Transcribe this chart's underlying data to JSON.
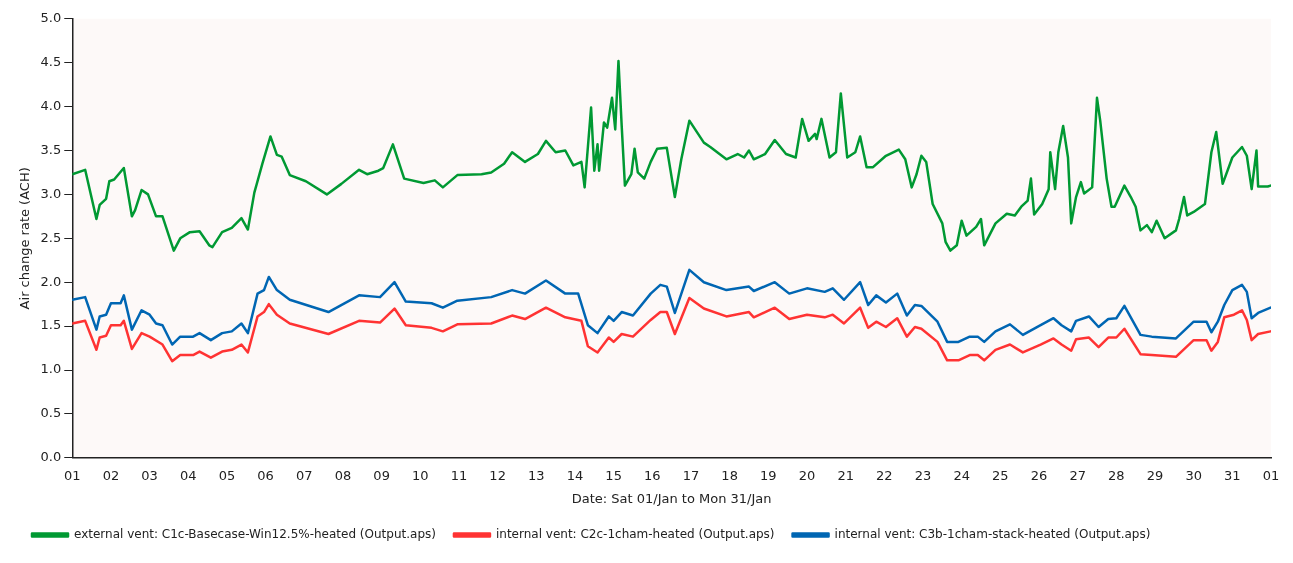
{
  "chart_data": {
    "type": "line",
    "xlabel": "Date: Sat 01/Jan to Mon 31/Jan",
    "ylabel": "Air change rate (ACH)",
    "xlim": [
      "--01-01",
      "--02-01"
    ],
    "ylim": [
      0,
      5
    ],
    "xticks": [
      {
        "value": "--01-01",
        "label": "01"
      },
      {
        "value": "--01-02",
        "label": "02"
      },
      {
        "value": "--01-03",
        "label": "03"
      },
      {
        "value": "--01-04",
        "label": "04"
      },
      {
        "value": "--01-05",
        "label": "05"
      },
      {
        "value": "--01-06",
        "label": "06"
      },
      {
        "value": "--01-07",
        "label": "07"
      },
      {
        "value": "--01-08",
        "label": "08"
      },
      {
        "value": "--01-09",
        "label": "09"
      },
      {
        "value": "--01-10",
        "label": "10"
      },
      {
        "value": "--01-11",
        "label": "11"
      },
      {
        "value": "--01-12",
        "label": "12"
      },
      {
        "value": "--01-13",
        "label": "13"
      },
      {
        "value": "--01-14",
        "label": "14"
      },
      {
        "value": "--01-15",
        "label": "15"
      },
      {
        "value": "--01-16",
        "label": "16"
      },
      {
        "value": "--01-17",
        "label": "17"
      },
      {
        "value": "--01-18",
        "label": "18"
      },
      {
        "value": "--01-19",
        "label": "19"
      },
      {
        "value": "--01-20",
        "label": "20"
      },
      {
        "value": "--01-21",
        "label": "21"
      },
      {
        "value": "--01-22",
        "label": "22"
      },
      {
        "value": "--01-23",
        "label": "23"
      },
      {
        "value": "--01-24",
        "label": "24"
      },
      {
        "value": "--01-25",
        "label": "25"
      },
      {
        "value": "--01-26",
        "label": "26"
      },
      {
        "value": "--01-27",
        "label": "27"
      },
      {
        "value": "--01-28",
        "label": "28"
      },
      {
        "value": "--01-29",
        "label": "29"
      },
      {
        "value": "--01-30",
        "label": "30"
      },
      {
        "value": "--01-31",
        "label": "31"
      },
      {
        "value": "--02-01",
        "label": "01"
      }
    ],
    "yticks": [
      {
        "value": 0,
        "label": "0.0"
      },
      0.5,
      {
        "value": 1,
        "label": "1.0"
      },
      1.5,
      {
        "value": 2,
        "label": "2.0"
      },
      2.5,
      {
        "value": 3,
        "label": "3.0"
      },
      3.5,
      {
        "value": 4,
        "label": "4.0"
      },
      4.5,
      {
        "value": 5,
        "label": "5.0"
      }
    ],
    "grid": false,
    "legend": "bottom",
    "marker": "none",
    "line_style": "solid",
    "series": [
      {
        "name": "external vent: C1c-Basecase-Win12.5%-heated (Output.aps)",
        "color": "#009933",
        "x": [
          "--01-01T00:00",
          "--01-01T08:00",
          "--01-01T15:00",
          "--01-01T17:00",
          "--01-01T21:00",
          "--01-01T23:00",
          "--01-02T02:00",
          "--01-02T08:00",
          "--01-02T13:00",
          "--01-02T15:00",
          "--01-02T19:00",
          "--01-02T23:00",
          "--01-03T04:00",
          "--01-03T08:00",
          "--01-03T15:00",
          "--01-03T19:00",
          "--01-04T01:00",
          "--01-04T07:00",
          "--01-04T13:00",
          "--01-04T15:00",
          "--01-04T21:00",
          "--01-05T03:00",
          "--01-05T09:00",
          "--01-05T13:00",
          "--01-05T17:00",
          "--01-05T22:00",
          "--01-06T03:00",
          "--01-06T07:00",
          "--01-06T10:00",
          "--01-06T15:00",
          "--01-07T01:00",
          "--01-07T14:00",
          "--01-07T23:00",
          "--01-08T10:00",
          "--01-08T15:00",
          "--01-08T22:00",
          "--01-09T01:00",
          "--01-09T07:00",
          "--01-09T14:00",
          "--01-10T02:00",
          "--01-10T09:00",
          "--01-10T14:00",
          "--01-10T23:00",
          "--01-11T14:00",
          "--01-11T20:00",
          "--01-12T04:00",
          "--01-12T09:00",
          "--01-12T17:00",
          "--01-13T01:00",
          "--01-13T06:00",
          "--01-13T12:00",
          "--01-13T18:00",
          "--01-13T23:00",
          "--01-14T04:00",
          "--01-14T06:00",
          "--01-14T10:00",
          "--01-14T12:00",
          "--01-14T14:00",
          "--01-14T15:00",
          "--01-14T18:00",
          "--01-14T20:00",
          "--01-14T23:00",
          "--01-15T01:00",
          "--01-15T03:00",
          "--01-15T05:00",
          "--01-15T07:00",
          "--01-15T11:00",
          "--01-15T13:00",
          "--01-15T15:00",
          "--01-15T19:00",
          "--01-15T23:00",
          "--01-16T03:00",
          "--01-16T09:00",
          "--01-16T14:00",
          "--01-16T18:00",
          "--01-16T23:00",
          "--01-17T08:00",
          "--01-17T12:00",
          "--01-17T22:00",
          "--01-18T05:00",
          "--01-18T09:00",
          "--01-18T12:00",
          "--01-18T15:00",
          "--01-18T22:00",
          "--01-19T04:00",
          "--01-19T11:00",
          "--01-19T17:00",
          "--01-19T21:00",
          "--01-20T01:00",
          "--01-20T05:00",
          "--01-20T06:00",
          "--01-20T09:00",
          "--01-20T14:00",
          "--01-20T18:00",
          "--01-20T21:00",
          "--01-21T01:00",
          "--01-21T06:00",
          "--01-21T09:00",
          "--01-21T13:00",
          "--01-21T17:00",
          "--01-22T01:00",
          "--01-22T09:00",
          "--01-22T13:00",
          "--01-22T17:00",
          "--01-22T20:00",
          "--01-22T23:00",
          "--01-23T02:00",
          "--01-23T06:00",
          "--01-23T12:00",
          "--01-23T14:00",
          "--01-23T17:00",
          "--01-23T21:00",
          "--01-24T00:00",
          "--01-24T03:00",
          "--01-24T09:00",
          "--01-24T12:00",
          "--01-24T14:00",
          "--01-24T21:00",
          "--01-25T04:00",
          "--01-25T09:00",
          "--01-25T13:00",
          "--01-25T17:00",
          "--01-25T19:00",
          "--01-25T21:00",
          "--01-26T02:00",
          "--01-26T06:00",
          "--01-26T07:00",
          "--01-26T10:00",
          "--01-26T12:00",
          "--01-26T15:00",
          "--01-26T18:00",
          "--01-26T20:00",
          "--01-26T23:00",
          "--01-27T02:00",
          "--01-27T04:00",
          "--01-27T09:00",
          "--01-27T12:00",
          "--01-27T14:00",
          "--01-27T18:00",
          "--01-27T21:00",
          "--01-27T23:00",
          "--01-28T05:00",
          "--01-28T09:00",
          "--01-28T12:00",
          "--01-28T15:00",
          "--01-28T19:00",
          "--01-28T22:00",
          "--01-29T01:00",
          "--01-29T06:00",
          "--01-29T13:00",
          "--01-29T15:00",
          "--01-29T18:00",
          "--01-29T20:00",
          "--01-30T00:00",
          "--01-30T07:00",
          "--01-30T11:00",
          "--01-30T14:00",
          "--01-30T18:00",
          "--01-31T00:00",
          "--01-31T06:00",
          "--01-31T09:00",
          "--01-31T12:00",
          "--01-31T15:00",
          "--01-31T16:00",
          "--01-31T22:00",
          "--01-31T23:45"
        ],
        "values": [
          3.23,
          3.28,
          2.72,
          2.88,
          2.95,
          3.15,
          3.17,
          3.3,
          2.75,
          2.82,
          3.05,
          3.0,
          2.75,
          2.75,
          2.36,
          2.5,
          2.57,
          2.58,
          2.42,
          2.4,
          2.57,
          2.62,
          2.73,
          2.6,
          3.02,
          3.35,
          3.66,
          3.45,
          3.43,
          3.22,
          3.15,
          3.0,
          3.12,
          3.28,
          3.23,
          3.27,
          3.3,
          3.57,
          3.18,
          3.13,
          3.16,
          3.08,
          3.22,
          3.23,
          3.25,
          3.35,
          3.48,
          3.37,
          3.46,
          3.61,
          3.48,
          3.5,
          3.33,
          3.37,
          3.08,
          3.99,
          3.27,
          3.57,
          3.27,
          3.82,
          3.76,
          4.1,
          3.74,
          4.52,
          3.78,
          3.1,
          3.23,
          3.52,
          3.25,
          3.18,
          3.37,
          3.52,
          3.53,
          2.97,
          3.4,
          3.84,
          3.59,
          3.54,
          3.4,
          3.46,
          3.42,
          3.5,
          3.4,
          3.46,
          3.62,
          3.46,
          3.42,
          3.86,
          3.61,
          3.69,
          3.63,
          3.86,
          3.42,
          3.48,
          4.15,
          3.42,
          3.48,
          3.66,
          3.31,
          3.31,
          3.44,
          3.51,
          3.4,
          3.08,
          3.23,
          3.44,
          3.37,
          2.89,
          2.67,
          2.46,
          2.36,
          2.42,
          2.7,
          2.53,
          2.63,
          2.72,
          2.42,
          2.67,
          2.78,
          2.76,
          2.86,
          2.93,
          3.18,
          2.77,
          2.89,
          3.06,
          3.48,
          3.06,
          3.48,
          3.78,
          3.42,
          2.67,
          2.97,
          3.14,
          3.01,
          3.08,
          4.1,
          3.84,
          3.18,
          2.86,
          2.86,
          3.1,
          2.97,
          2.86,
          2.59,
          2.65,
          2.57,
          2.7,
          2.5,
          2.59,
          2.72,
          2.97,
          2.76,
          2.8,
          2.89,
          3.48,
          3.71,
          3.12,
          3.42,
          3.54,
          3.44,
          3.06,
          3.5,
          3.09,
          3.09,
          3.1
        ]
      },
      {
        "name": "internal vent: C2c-1cham-heated (Output.aps)",
        "color": "#ff3333",
        "x": [
          "--01-01T00:00",
          "--01-01T08:00",
          "--01-01T15:00",
          "--01-01T17:00",
          "--01-01T21:00",
          "--01-02T00:00",
          "--01-02T06:00",
          "--01-02T08:00",
          "--01-02T13:00",
          "--01-02T19:00",
          "--01-03T00:00",
          "--01-03T08:00",
          "--01-03T14:00",
          "--01-03T19:00",
          "--01-04T03:00",
          "--01-04T07:00",
          "--01-04T14:00",
          "--01-04T21:00",
          "--01-05T03:00",
          "--01-05T09:00",
          "--01-05T13:00",
          "--01-05T19:00",
          "--01-05T23:00",
          "--01-06T02:00",
          "--01-06T07:00",
          "--01-06T15:00",
          "--01-07T15:00",
          "--01-08T10:00",
          "--01-08T23:00",
          "--01-09T08:00",
          "--01-09T15:00",
          "--01-10T07:00",
          "--01-10T14:00",
          "--01-10T23:00",
          "--01-11T20:00",
          "--01-12T09:00",
          "--01-12T17:00",
          "--01-13T06:00",
          "--01-13T18:00",
          "--01-14T04:00",
          "--01-14T08:00",
          "--01-14T14:00",
          "--01-14T21:00",
          "--01-15T00:00",
          "--01-15T05:00",
          "--01-15T12:00",
          "--01-15T23:00",
          "--01-16T05:00",
          "--01-16T09:00",
          "--01-16T14:00",
          "--01-16T23:00",
          "--01-17T08:00",
          "--01-17T22:00",
          "--01-18T12:00",
          "--01-18T15:00",
          "--01-19T04:00",
          "--01-19T13:00",
          "--01-20T00:00",
          "--01-20T11:00",
          "--01-20T16:00",
          "--01-20T23:00",
          "--01-21T09:00",
          "--01-21T14:00",
          "--01-21T19:00",
          "--01-22T01:00",
          "--01-22T08:00",
          "--01-22T14:00",
          "--01-22T19:00",
          "--01-22T23:00",
          "--01-23T09:00",
          "--01-23T15:00",
          "--01-23T22:00",
          "--01-24T05:00",
          "--01-24T10:00",
          "--01-24T14:00",
          "--01-24T21:00",
          "--01-25T06:00",
          "--01-25T14:00",
          "--01-26T01:00",
          "--01-26T09:00",
          "--01-26T14:00",
          "--01-26T20:00",
          "--01-26T23:00",
          "--01-27T07:00",
          "--01-27T13:00",
          "--01-27T19:00",
          "--01-28T00:00",
          "--01-28T05:00",
          "--01-28T15:00",
          "--01-28T22:00",
          "--01-29T13:00",
          "--01-30T00:00",
          "--01-30T08:00",
          "--01-30T11:00",
          "--01-30T15:00",
          "--01-30T19:00",
          "--01-31T01:00",
          "--01-31T06:00",
          "--01-31T09:00",
          "--01-31T12:00",
          "--01-31T16:00",
          "--01-31T23:45"
        ],
        "values": [
          1.53,
          1.56,
          1.23,
          1.37,
          1.39,
          1.51,
          1.51,
          1.56,
          1.24,
          1.42,
          1.38,
          1.29,
          1.1,
          1.17,
          1.17,
          1.21,
          1.14,
          1.21,
          1.23,
          1.29,
          1.2,
          1.61,
          1.66,
          1.75,
          1.63,
          1.53,
          1.41,
          1.56,
          1.54,
          1.7,
          1.51,
          1.48,
          1.44,
          1.52,
          1.53,
          1.62,
          1.58,
          1.71,
          1.6,
          1.56,
          1.27,
          1.2,
          1.37,
          1.32,
          1.41,
          1.38,
          1.57,
          1.66,
          1.66,
          1.41,
          1.82,
          1.7,
          1.61,
          1.66,
          1.6,
          1.71,
          1.58,
          1.63,
          1.6,
          1.63,
          1.53,
          1.71,
          1.48,
          1.55,
          1.49,
          1.59,
          1.38,
          1.49,
          1.47,
          1.32,
          1.11,
          1.11,
          1.17,
          1.17,
          1.11,
          1.23,
          1.29,
          1.2,
          1.29,
          1.36,
          1.29,
          1.22,
          1.35,
          1.37,
          1.26,
          1.37,
          1.37,
          1.47,
          1.18,
          1.17,
          1.15,
          1.34,
          1.34,
          1.22,
          1.32,
          1.6,
          1.63,
          1.68,
          1.57,
          1.34,
          1.41,
          1.44
        ]
      },
      {
        "name": "internal vent: C3b-1cham-stack-heated (Output.aps)",
        "color": "#0066b3",
        "x": [
          "--01-01T00:00",
          "--01-01T08:00",
          "--01-01T15:00",
          "--01-01T17:00",
          "--01-01T21:00",
          "--01-02T00:00",
          "--01-02T06:00",
          "--01-02T08:00",
          "--01-02T13:00",
          "--01-02T19:00",
          "--01-03T00:00",
          "--01-03T04:00",
          "--01-03T08:00",
          "--01-03T14:00",
          "--01-03T19:00",
          "--01-04T03:00",
          "--01-04T07:00",
          "--01-04T14:00",
          "--01-04T21:00",
          "--01-05T03:00",
          "--01-05T09:00",
          "--01-05T13:00",
          "--01-05T19:00",
          "--01-05T23:00",
          "--01-06T02:00",
          "--01-06T07:00",
          "--01-06T15:00",
          "--01-07T15:00",
          "--01-08T10:00",
          "--01-08T23:00",
          "--01-09T08:00",
          "--01-09T15:00",
          "--01-10T07:00",
          "--01-10T14:00",
          "--01-10T23:00",
          "--01-11T20:00",
          "--01-12T09:00",
          "--01-12T17:00",
          "--01-13T06:00",
          "--01-13T18:00",
          "--01-14T02:00",
          "--01-14T08:00",
          "--01-14T14:00",
          "--01-14T21:00",
          "--01-15T00:00",
          "--01-15T05:00",
          "--01-15T12:00",
          "--01-15T23:00",
          "--01-16T05:00",
          "--01-16T09:00",
          "--01-16T14:00",
          "--01-16T23:00",
          "--01-17T08:00",
          "--01-17T22:00",
          "--01-18T12:00",
          "--01-18T15:00",
          "--01-19T04:00",
          "--01-19T13:00",
          "--01-20T00:00",
          "--01-20T11:00",
          "--01-20T16:00",
          "--01-20T23:00",
          "--01-21T09:00",
          "--01-21T14:00",
          "--01-21T19:00",
          "--01-22T01:00",
          "--01-22T08:00",
          "--01-22T14:00",
          "--01-22T19:00",
          "--01-22T23:00",
          "--01-23T09:00",
          "--01-23T15:00",
          "--01-23T22:00",
          "--01-24T05:00",
          "--01-24T10:00",
          "--01-24T14:00",
          "--01-24T21:00",
          "--01-25T06:00",
          "--01-25T14:00",
          "--01-26T01:00",
          "--01-26T09:00",
          "--01-26T14:00",
          "--01-26T20:00",
          "--01-26T23:00",
          "--01-27T07:00",
          "--01-27T13:00",
          "--01-27T19:00",
          "--01-28T00:00",
          "--01-28T05:00",
          "--01-28T15:00",
          "--01-28T22:00",
          "--01-29T13:00",
          "--01-30T00:00",
          "--01-30T08:00",
          "--01-30T11:00",
          "--01-30T15:00",
          "--01-30T19:00",
          "--01-31T00:00",
          "--01-31T06:00",
          "--01-31T09:00",
          "--01-31T12:00",
          "--01-31T16:00",
          "--01-31T23:45"
        ],
        "values": [
          1.8,
          1.83,
          1.46,
          1.61,
          1.63,
          1.76,
          1.76,
          1.85,
          1.46,
          1.68,
          1.63,
          1.53,
          1.51,
          1.29,
          1.38,
          1.38,
          1.42,
          1.34,
          1.42,
          1.44,
          1.53,
          1.42,
          1.87,
          1.91,
          2.06,
          1.91,
          1.8,
          1.66,
          1.85,
          1.83,
          2.0,
          1.78,
          1.76,
          1.71,
          1.79,
          1.83,
          1.91,
          1.87,
          2.02,
          1.87,
          1.87,
          1.51,
          1.42,
          1.61,
          1.56,
          1.66,
          1.62,
          1.87,
          1.97,
          1.95,
          1.65,
          2.14,
          2.0,
          1.91,
          1.95,
          1.9,
          2.0,
          1.87,
          1.93,
          1.89,
          1.93,
          1.8,
          2.0,
          1.74,
          1.85,
          1.77,
          1.87,
          1.62,
          1.74,
          1.73,
          1.55,
          1.32,
          1.32,
          1.38,
          1.38,
          1.32,
          1.44,
          1.52,
          1.4,
          1.51,
          1.59,
          1.51,
          1.44,
          1.56,
          1.61,
          1.49,
          1.58,
          1.59,
          1.73,
          1.4,
          1.38,
          1.36,
          1.55,
          1.55,
          1.43,
          1.55,
          1.74,
          1.91,
          1.97,
          1.89,
          1.59,
          1.65,
          1.71
        ]
      }
    ]
  }
}
